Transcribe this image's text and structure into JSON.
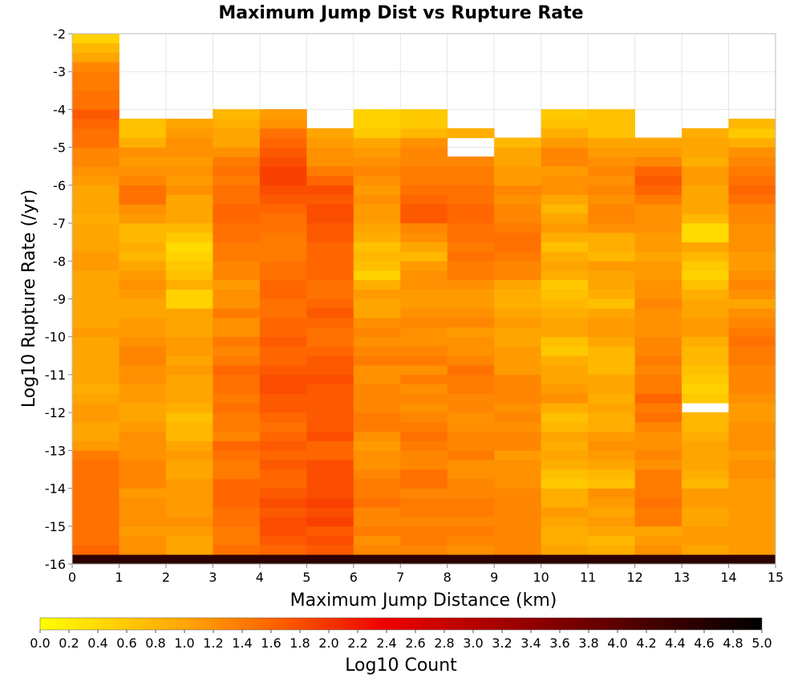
{
  "chart_data": {
    "type": "heatmap",
    "title": "Maximum Jump Dist vs Rupture Rate",
    "xlabel": "Maximum Jump Distance (km)",
    "ylabel": "Log10 Rupture Rate (/yr)",
    "xlim": [
      0,
      15
    ],
    "ylim": [
      -16,
      -2
    ],
    "x_ticks": [
      "0",
      "1",
      "2",
      "3",
      "4",
      "5",
      "6",
      "7",
      "8",
      "9",
      "10",
      "11",
      "12",
      "13",
      "14",
      "15"
    ],
    "y_ticks": [
      "-2",
      "-3",
      "-4",
      "-5",
      "-6",
      "-7",
      "-8",
      "-9",
      "-10",
      "-11",
      "-12",
      "-13",
      "-14",
      "-15",
      "-16"
    ],
    "grid": true,
    "x_bin_width": 1,
    "y_bin_height": 0.25,
    "y_bin_start": -16,
    "colorbar": {
      "label": "Log10 Count",
      "min": 0.0,
      "max": 5.0,
      "ticks": [
        "0.0",
        "0.2",
        "0.4",
        "0.6",
        "0.8",
        "1.0",
        "1.2",
        "1.4",
        "1.6",
        "1.8",
        "2.0",
        "2.2",
        "2.4",
        "2.6",
        "2.8",
        "3.0",
        "3.2",
        "3.4",
        "3.6",
        "3.8",
        "4.0",
        "4.2",
        "4.4",
        "4.6",
        "4.8",
        "5.0"
      ],
      "colors": [
        "#ffff00",
        "#ffa500",
        "#ff6600",
        "#ee0000",
        "#880000",
        "#000000"
      ]
    },
    "columns": [
      {
        "x": 0,
        "top": -2.75,
        "values": [
          4.5,
          1.6,
          1.5,
          1.5,
          1.5,
          1.5,
          1.5,
          1.5,
          1.5,
          1.5,
          1.5,
          1.4,
          1.1,
          1.0,
          1.0,
          1.1,
          1.1,
          1.0,
          0.9,
          1.0,
          1.0,
          1.0,
          1.0,
          1.0,
          1.1,
          1.0,
          1.0,
          1.0,
          1.0,
          1.0,
          1.0,
          1.1,
          1.1,
          1.0,
          1.0,
          1.0,
          0.9,
          1.0,
          1.0,
          1.0,
          1.1,
          1.2,
          1.3,
          1.3,
          1.5,
          1.5,
          1.6,
          1.7,
          1.5,
          1.5,
          1.4,
          1.4,
          1.3,
          1.0,
          0.8,
          0.5
        ]
      },
      {
        "x": 1,
        "top": -3.75,
        "values": [
          4.5,
          1.2,
          1.2,
          1.1,
          1.2,
          1.2,
          1.2,
          1.1,
          1.3,
          1.3,
          1.3,
          1.2,
          1.2,
          1.2,
          1.1,
          1.0,
          1.0,
          1.1,
          1.1,
          1.2,
          1.2,
          1.3,
          1.3,
          1.2,
          1.1,
          1.1,
          1.0,
          1.0,
          1.1,
          1.2,
          1.1,
          1.0,
          0.8,
          0.9,
          0.8,
          0.8,
          1.1,
          1.2,
          1.5,
          1.5,
          1.3,
          1.2,
          1.1,
          1.2,
          0.9,
          0.7,
          0.7
        ]
      },
      {
        "x": 2,
        "top": -3.75,
        "values": [
          4.5,
          1.0,
          1.0,
          1.1,
          1.2,
          1.1,
          1.1,
          1.1,
          1.1,
          1.0,
          1.0,
          1.1,
          1.0,
          0.8,
          0.8,
          0.7,
          0.9,
          1.0,
          1.0,
          1.0,
          1.1,
          1.0,
          1.1,
          1.1,
          1.0,
          1.0,
          1.0,
          0.5,
          0.5,
          0.9,
          0.7,
          0.6,
          0.5,
          0.4,
          0.6,
          0.8,
          1.0,
          1.0,
          1.0,
          1.2,
          1.1,
          1.2,
          1.1,
          1.2,
          1.2,
          1.1,
          1.0
        ]
      },
      {
        "x": 3,
        "top": -3.5,
        "values": [
          4.5,
          1.5,
          1.4,
          1.4,
          1.5,
          1.5,
          1.6,
          1.6,
          1.6,
          1.4,
          1.4,
          1.5,
          1.6,
          1.3,
          1.4,
          1.4,
          1.5,
          1.4,
          1.5,
          1.5,
          1.6,
          1.4,
          1.3,
          1.4,
          1.2,
          1.2,
          1.4,
          1.2,
          1.2,
          1.1,
          1.3,
          1.3,
          1.4,
          1.4,
          1.5,
          1.5,
          1.6,
          1.6,
          1.5,
          1.5,
          1.4,
          1.5,
          1.4,
          1.2,
          1.0,
          1.0,
          0.9,
          0.8
        ]
      },
      {
        "x": 4,
        "top": -3.5,
        "values": [
          4.5,
          1.6,
          1.7,
          1.8,
          1.8,
          1.7,
          1.8,
          1.7,
          1.6,
          1.6,
          1.7,
          1.6,
          1.7,
          1.6,
          1.5,
          1.6,
          1.7,
          1.7,
          1.8,
          1.8,
          1.7,
          1.6,
          1.6,
          1.7,
          1.6,
          1.6,
          1.5,
          1.5,
          1.6,
          1.6,
          1.5,
          1.5,
          1.4,
          1.4,
          1.4,
          1.5,
          1.5,
          1.6,
          1.7,
          1.8,
          1.9,
          1.9,
          1.8,
          1.7,
          1.6,
          1.5,
          1.2,
          1.1
        ]
      },
      {
        "x": 5,
        "top": -3.5,
        "values": [
          4.5,
          1.7,
          1.8,
          1.7,
          1.9,
          1.8,
          1.9,
          1.8,
          1.8,
          1.8,
          1.8,
          1.6,
          1.6,
          1.8,
          1.7,
          1.7,
          1.7,
          1.7,
          1.7,
          1.8,
          1.7,
          1.7,
          1.6,
          1.5,
          1.5,
          1.6,
          1.7,
          1.6,
          1.5,
          1.5,
          1.6,
          1.6,
          1.6,
          1.6,
          1.7,
          1.7,
          1.8,
          1.8,
          1.7,
          1.8,
          1.6,
          1.4,
          1.2,
          1.2,
          1.1,
          1.0
        ]
      },
      {
        "x": 6,
        "top": -3.25,
        "values": [
          4.5,
          1.3,
          1.2,
          1.4,
          1.3,
          1.3,
          1.5,
          1.4,
          1.4,
          1.3,
          1.2,
          1.2,
          1.1,
          1.2,
          1.4,
          1.4,
          1.3,
          1.3,
          1.3,
          1.2,
          1.2,
          1.4,
          1.3,
          1.2,
          1.3,
          1.2,
          1.0,
          1.0,
          1.1,
          0.9,
          0.5,
          0.7,
          0.8,
          0.7,
          0.9,
          1.0,
          1.1,
          1.1,
          1.2,
          1.1,
          1.2,
          1.3,
          1.2,
          1.1,
          1.0,
          0.6,
          0.5,
          0.5
        ]
      },
      {
        "x": 7,
        "top": -3.5,
        "values": [
          4.5,
          1.3,
          1.4,
          1.4,
          1.3,
          1.4,
          1.4,
          1.3,
          1.5,
          1.5,
          1.3,
          1.3,
          1.4,
          1.5,
          1.4,
          1.3,
          1.2,
          1.3,
          1.2,
          1.4,
          1.2,
          1.4,
          1.3,
          1.2,
          1.2,
          1.3,
          1.2,
          1.1,
          1.1,
          1.2,
          1.2,
          1.1,
          0.8,
          1.0,
          1.2,
          1.3,
          1.7,
          1.7,
          1.6,
          1.5,
          1.4,
          1.4,
          1.3,
          1.3,
          1.2,
          0.8,
          0.6,
          0.6
        ]
      },
      {
        "x": 8,
        "top": -3.5,
        "values": [
          4.5,
          1.2,
          1.3,
          1.4,
          1.3,
          1.4,
          1.4,
          1.3,
          1.3,
          1.2,
          1.2,
          1.4,
          1.3,
          1.3,
          1.2,
          1.2,
          1.3,
          1.3,
          1.4,
          1.4,
          1.5,
          1.3,
          1.2,
          1.2,
          1.1,
          1.3,
          1.2,
          1.1,
          1.1,
          1.2,
          1.4,
          1.4,
          1.5,
          1.4,
          1.5,
          1.5,
          1.6,
          1.6,
          1.5,
          1.5,
          1.4,
          1.4,
          1.3,
          null,
          null,
          0.9
        ]
      },
      {
        "x": 9,
        "top": -3.75,
        "values": [
          4.5,
          1.3,
          1.3,
          1.3,
          1.3,
          1.3,
          1.3,
          1.3,
          1.2,
          1.2,
          1.2,
          1.1,
          1.3,
          1.3,
          1.2,
          1.3,
          1.2,
          1.3,
          1.3,
          1.3,
          1.1,
          1.1,
          1.1,
          1.0,
          1.0,
          1.1,
          1.0,
          0.9,
          0.9,
          1.0,
          1.3,
          1.3,
          1.4,
          1.5,
          1.5,
          1.4,
          1.3,
          1.3,
          1.2,
          1.3,
          1.1,
          1.1,
          1.0,
          1.0,
          0.8
        ]
      },
      {
        "x": 10,
        "top": -3.5,
        "values": [
          4.5,
          1.0,
          0.9,
          0.9,
          1.0,
          1.1,
          0.9,
          0.9,
          0.6,
          0.7,
          0.9,
          1.0,
          0.9,
          1.0,
          0.8,
          0.7,
          0.9,
          1.2,
          1.1,
          1.0,
          1.0,
          0.9,
          0.6,
          0.7,
          1.0,
          1.0,
          0.9,
          0.8,
          0.7,
          0.6,
          0.9,
          1.0,
          0.9,
          0.7,
          0.9,
          1.1,
          1.0,
          0.8,
          1.0,
          1.2,
          1.2,
          1.1,
          1.3,
          1.3,
          1.1,
          0.9,
          0.7,
          0.6
        ]
      },
      {
        "x": 11,
        "top": -3.5,
        "values": [
          4.5,
          0.9,
          0.8,
          1.0,
          1.1,
          1.0,
          1.1,
          1.2,
          0.7,
          0.8,
          1.0,
          1.1,
          1.2,
          1.1,
          0.9,
          0.9,
          1.0,
          0.9,
          1.0,
          1.0,
          0.8,
          0.8,
          0.8,
          1.0,
          1.1,
          1.1,
          1.0,
          0.7,
          0.9,
          1.0,
          1.0,
          1.1,
          0.8,
          0.9,
          0.9,
          1.2,
          1.3,
          1.3,
          1.2,
          1.3,
          1.2,
          1.3,
          1.2,
          1.1,
          1.0,
          0.7,
          0.7,
          0.7
        ]
      },
      {
        "x": 12,
        "top": -4.0,
        "values": [
          4.5,
          1.2,
          1.1,
          1.0,
          1.4,
          1.4,
          1.5,
          1.4,
          1.4,
          1.4,
          1.2,
          1.3,
          1.2,
          1.2,
          1.3,
          1.5,
          1.4,
          1.6,
          1.4,
          1.4,
          1.3,
          1.4,
          1.3,
          1.3,
          1.2,
          1.2,
          1.2,
          1.3,
          1.2,
          1.2,
          1.1,
          1.1,
          1.0,
          1.1,
          1.1,
          1.2,
          1.2,
          1.2,
          1.4,
          1.6,
          1.7,
          1.6,
          1.3,
          1.1,
          1.0
        ]
      },
      {
        "x": 13,
        "top": -4.0,
        "values": [
          4.5,
          1.0,
          1.1,
          1.1,
          1.0,
          1.0,
          1.1,
          1.1,
          0.8,
          0.9,
          1.0,
          1.0,
          1.0,
          0.9,
          0.8,
          0.8,
          null,
          0.6,
          0.5,
          0.6,
          0.7,
          0.8,
          0.8,
          0.9,
          1.1,
          1.1,
          1.0,
          1.0,
          0.9,
          0.7,
          0.5,
          0.6,
          0.8,
          1.0,
          0.4,
          0.4,
          0.8,
          1.0,
          1.0,
          1.0,
          1.1,
          1.1,
          0.9,
          1.0,
          1.0,
          0.9
        ]
      },
      {
        "x": 14,
        "top": -3.75,
        "values": [
          4.5,
          1.1,
          1.1,
          1.1,
          1.1,
          1.1,
          1.1,
          1.1,
          1.1,
          1.2,
          1.2,
          1.1,
          1.2,
          1.2,
          1.2,
          1.1,
          1.1,
          1.2,
          1.3,
          1.3,
          1.3,
          1.4,
          1.4,
          1.5,
          1.4,
          1.3,
          1.2,
          1.0,
          1.2,
          1.3,
          1.2,
          1.1,
          1.1,
          1.2,
          1.2,
          1.2,
          1.3,
          1.3,
          1.5,
          1.6,
          1.5,
          1.4,
          1.3,
          1.2,
          0.9,
          0.6,
          0.8
        ]
      }
    ]
  }
}
